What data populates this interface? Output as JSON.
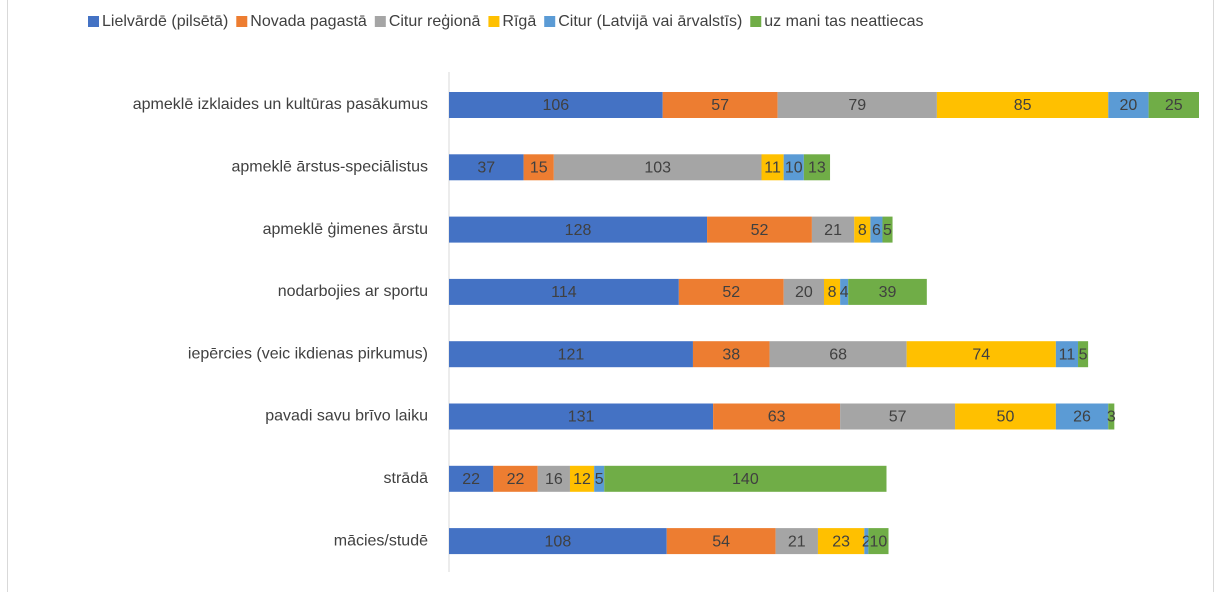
{
  "chart_data": {
    "type": "stacked-bar-horizontal",
    "categories": [
      "apmeklē izklaides un kultūras pasākumus",
      "apmeklē ārstus-speciālistus",
      "apmeklē ģimenes ārstu",
      "nodarbojies ar sportu",
      "iepērcies (veic ikdienas pirkumus)",
      "pavadi savu brīvo laiku",
      "strādā",
      "mācies/studē"
    ],
    "series": [
      {
        "name": "Lielvārdē (pilsētā)",
        "color": "#4472c4",
        "values": [
          106,
          37,
          128,
          114,
          121,
          131,
          22,
          108
        ]
      },
      {
        "name": "Novada pagastā",
        "color": "#ed7d31",
        "values": [
          57,
          15,
          52,
          52,
          38,
          63,
          22,
          54
        ]
      },
      {
        "name": "Citur reģionā",
        "color": "#a5a5a5",
        "values": [
          79,
          103,
          21,
          20,
          68,
          57,
          16,
          21
        ]
      },
      {
        "name": "Rīgā",
        "color": "#ffc000",
        "values": [
          85,
          11,
          8,
          8,
          74,
          50,
          12,
          23
        ]
      },
      {
        "name": "Citur (Latvijā vai ārvalstīs)",
        "color": "#5b9bd5",
        "values": [
          20,
          10,
          6,
          4,
          11,
          26,
          5,
          2
        ]
      },
      {
        "name": "uz mani tas neattiecas",
        "color": "#70ad47",
        "values": [
          25,
          13,
          5,
          39,
          5,
          3,
          140,
          10
        ]
      }
    ],
    "xlim": [
      0,
      372
    ],
    "legend": "top"
  }
}
